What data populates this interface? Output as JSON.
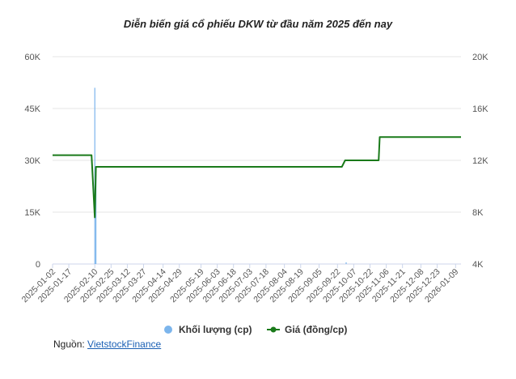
{
  "chart_data": {
    "type": "line",
    "title": "Diễn biến giá cổ phiếu DKW từ đầu năm 2025 đến nay",
    "x_tick_labels": [
      "2025-01-02",
      "2025-01-17",
      "2025-02-10",
      "2025-02-25",
      "2025-03-12",
      "2025-03-27",
      "2025-04-14",
      "2025-04-29",
      "2025-05-19",
      "2025-06-03",
      "2025-06-18",
      "2025-07-03",
      "2025-07-18",
      "2025-08-04",
      "2025-08-19",
      "2025-09-05",
      "2025-09-22",
      "2025-10-07",
      "2025-10-22",
      "2025-11-06",
      "2025-11-21",
      "2025-12-08",
      "2025-12-23",
      "2026-01-09"
    ],
    "y_left": {
      "ylim": [
        0,
        60000
      ],
      "ticks": [
        0,
        15000,
        30000,
        45000,
        60000
      ],
      "tick_labels": [
        "0",
        "15K",
        "30K",
        "45K",
        "60K"
      ]
    },
    "y_right": {
      "ylim": [
        4000,
        20000
      ],
      "ticks": [
        4000,
        8000,
        12000,
        16000,
        20000
      ],
      "tick_labels": [
        "4K",
        "8K",
        "12K",
        "16K",
        "20K"
      ]
    },
    "grid": true,
    "legend_position": "bottom",
    "series": [
      {
        "name": "Khối lượng (cp)",
        "type": "bar",
        "axis": "left",
        "color": "#7cb5ec",
        "points": [
          {
            "x": "2025-02-10",
            "y": 51000
          },
          {
            "x": "2025-02-11",
            "y": 26000
          },
          {
            "x": "2025-09-30",
            "y": 500
          }
        ]
      },
      {
        "name": "Giá (đồng/cp)",
        "type": "line",
        "axis": "right",
        "color": "#1a7a1a",
        "points": [
          {
            "x": "2025-01-02",
            "y": 12400
          },
          {
            "x": "2025-02-07",
            "y": 12400
          },
          {
            "x": "2025-02-10",
            "y": 7600
          },
          {
            "x": "2025-02-11",
            "y": 11500
          },
          {
            "x": "2025-09-26",
            "y": 11500
          },
          {
            "x": "2025-09-29",
            "y": 12000
          },
          {
            "x": "2025-10-30",
            "y": 12000
          },
          {
            "x": "2025-10-31",
            "y": 13800
          },
          {
            "x": "2026-01-14",
            "y": 13800
          }
        ]
      }
    ]
  },
  "source": {
    "label": "Nguồn:",
    "link_text": "VietstockFinance"
  }
}
